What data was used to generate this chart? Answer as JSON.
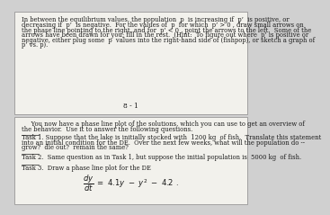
{
  "bg_top": "#d0d0d0",
  "bg_page1": "#f2f1ec",
  "bg_page2": "#f2f1ec",
  "text_color": "#1a1a1a",
  "page1_text_lines": [
    "In between the equilibrium values, the population  p  is increasing if  p’  is positive, or",
    "decreasing if  p’  is negative.  For the values of  p  for which  p’ > 0 , draw small arrows on",
    "the phase line pointing to the right, and for  p’ < 0 , point the arrows to the left.  Some of the",
    "arrows have been drawn for you; fill in the rest.  (Hint:  To figure out where  p’ is positive or",
    "negative, either plug some  p  values into the right-hand side of (fishpop), or sketch a graph of",
    "p’ vs. p)."
  ],
  "page_number": "8 - 1",
  "page2_intro_lines": [
    "     You now have a phase line plot of the solutions, which you can use to get an overview of",
    "the behavior.  Use it to answer the following questions."
  ],
  "task1_label": "Task 1.",
  "task1_lines": [
    " Suppose that the lake is initially stocked with  1200 kg  of fish.  Translate this statement",
    "into an initial condition for the DE.  Over the next few weeks, what will the population do --",
    "grow?  die out?  remain the same?"
  ],
  "task2_label": "Task 2.",
  "task2_lines": [
    "  Same question as in Task 1, but suppose the initial population is  5000 kg  of fish."
  ],
  "task3_label": "Task 3.",
  "task3_lines": [
    "  Draw a phase line plot for the DE"
  ]
}
